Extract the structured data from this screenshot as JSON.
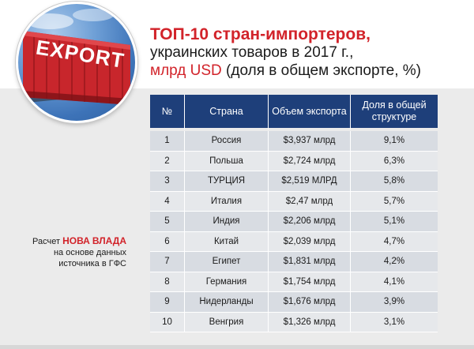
{
  "header": {
    "image_word": "EXPORT",
    "title_line1": "ТОП-10 стран-импортеров,",
    "title_line2": "украинских товаров в 2017 г.,",
    "title_line3_accent": "млрд USD",
    "title_line3_rest": " (доля в общем экспорте, %)"
  },
  "colors": {
    "accent_red": "#d2232a",
    "header_blue": "#1e3f7a"
  },
  "table": {
    "headers": [
      "№",
      "Страна",
      "Объем экспорта",
      "Доля в общей структуре"
    ],
    "rows": [
      {
        "num": "1",
        "country": "Россия",
        "volume": "$3,937 млрд",
        "share": "9,1%"
      },
      {
        "num": "2",
        "country": "Польша",
        "volume": "$2,724 млрд",
        "share": "6,3%"
      },
      {
        "num": "3",
        "country": "ТУРЦИЯ",
        "volume": "$2,519 МЛРД",
        "share": "5,8%"
      },
      {
        "num": "4",
        "country": "Италия",
        "volume": "$2,47 млрд",
        "share": "5,7%"
      },
      {
        "num": "5",
        "country": "Индия",
        "volume": "$2,206 млрд",
        "share": "5,1%"
      },
      {
        "num": "6",
        "country": "Китай",
        "volume": "$2,039 млрд",
        "share": "4,7%"
      },
      {
        "num": "7",
        "country": "Египет",
        "volume": "$1,831 млрд",
        "share": "4,2%"
      },
      {
        "num": "8",
        "country": "Германия",
        "volume": "$1,754 млрд",
        "share": "4,1%"
      },
      {
        "num": "9",
        "country": "Нидерланды",
        "volume": "$1,676 млрд",
        "share": "3,9%"
      },
      {
        "num": "10",
        "country": "Венгрия",
        "volume": "$1,326 млрд",
        "share": "3,1%"
      }
    ]
  },
  "source": {
    "prefix": "Расчет ",
    "brand_nova": "НОВА",
    "brand_vlada": "ВЛАДА",
    "line2": "на основе данных",
    "line3": "источника в ГФС"
  }
}
